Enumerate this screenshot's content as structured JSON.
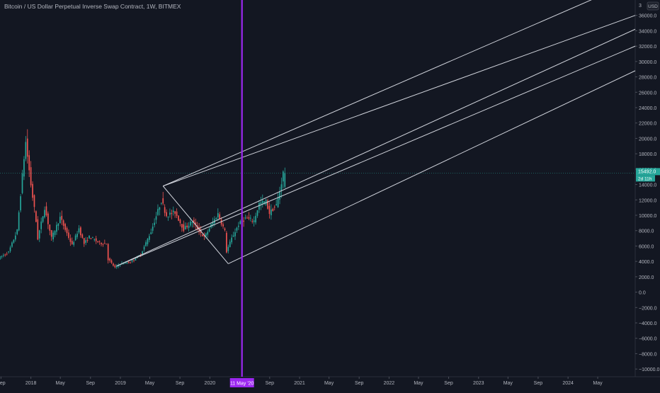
{
  "title": "Bitcoin / US Dollar Perpetual Inverse Swap Contract, 1W, BITMEX",
  "currency_button": "USD",
  "colors": {
    "background": "#131722",
    "axis_text": "#b2b5be",
    "up": "#26a69a",
    "down": "#ef5350",
    "channel": "#d1d4dc",
    "marker": "#9c27f0",
    "price_tag": "#26a69a"
  },
  "chart_data": {
    "type": "candlestick",
    "title": "Bitcoin / US Dollar Perpetual Inverse Swap Contract, 1W, BITMEX",
    "ylim": [
      -11000,
      38000
    ],
    "y_ticks": [
      -10000,
      -8000,
      -6000,
      -4000,
      -2000,
      0,
      2000,
      4000,
      6000,
      8000,
      10000,
      12000,
      14000,
      16000,
      18000,
      20000,
      22000,
      24000,
      26000,
      28000,
      30000,
      32000,
      34000,
      36000
    ],
    "y_tick_labels": [
      "−10000.0",
      "−8000.0",
      "−6000.0",
      "−4000.0",
      "−2000.0",
      "0.0",
      "2000.0",
      "4000.0",
      "6000.0",
      "8000.0",
      "10000.0",
      "12000.0",
      "14000.0",
      "16000.0",
      "18000.0",
      "20000.0",
      "22000.0",
      "24000.0",
      "26000.0",
      "28000.0",
      "30000.0",
      "32000.0",
      "34000.0",
      "36000.0"
    ],
    "x_ticks": [
      "2017-09-01",
      "2018-01-01",
      "2018-05-01",
      "2018-09-01",
      "2019-01-01",
      "2019-05-01",
      "2019-09-01",
      "2020-01-01",
      "2020-09-01",
      "2021-01-01",
      "2021-05-01",
      "2021-09-01",
      "2022-01-01",
      "2022-05-01",
      "2022-09-01",
      "2023-01-01",
      "2023-05-01",
      "2023-09-01",
      "2024-01-01",
      "2024-05-01"
    ],
    "x_tick_labels": [
      "Sep",
      "2018",
      "May",
      "Sep",
      "2019",
      "May",
      "Sep",
      "2020",
      "Sep",
      "2021",
      "May",
      "Sep",
      "2022",
      "May",
      "Sep",
      "2023",
      "May",
      "Sep",
      "2024",
      "May"
    ],
    "xlim": [
      "2017-08-28",
      "2024-10-01"
    ],
    "last_price": 15492.0,
    "last_price_label": "15492.0",
    "countdown_label": "2d 11h",
    "vertical_marker": {
      "date": "2020-05-11",
      "label": "11 May '20"
    },
    "anchors": [
      [
        "2017-08-28",
        4400
      ],
      [
        "2017-10-09",
        5200
      ],
      [
        "2017-11-13",
        8000
      ],
      [
        "2017-12-11",
        17500
      ],
      [
        "2017-12-18",
        19500
      ],
      [
        "2018-01-08",
        14000
      ],
      [
        "2018-01-29",
        9200
      ],
      [
        "2018-02-05",
        7000
      ],
      [
        "2018-03-05",
        11000
      ],
      [
        "2018-04-02",
        7000
      ],
      [
        "2018-05-07",
        9700
      ],
      [
        "2018-06-25",
        6100
      ],
      [
        "2018-07-23",
        8300
      ],
      [
        "2018-08-13",
        6300
      ],
      [
        "2018-09-03",
        7200
      ],
      [
        "2018-10-15",
        6400
      ],
      [
        "2018-11-12",
        6300
      ],
      [
        "2018-11-19",
        4300
      ],
      [
        "2018-12-17",
        3200
      ],
      [
        "2019-01-07",
        3700
      ],
      [
        "2019-02-18",
        3900
      ],
      [
        "2019-04-01",
        4900
      ],
      [
        "2019-05-13",
        7900
      ],
      [
        "2019-06-24",
        11900
      ],
      [
        "2019-07-15",
        10000
      ],
      [
        "2019-08-19",
        10400
      ],
      [
        "2019-09-23",
        8200
      ],
      [
        "2019-10-28",
        9200
      ],
      [
        "2019-12-16",
        7100
      ],
      [
        "2020-01-13",
        8700
      ],
      [
        "2020-02-10",
        10200
      ],
      [
        "2020-03-09",
        7900
      ],
      [
        "2020-03-16",
        5300
      ],
      [
        "2020-04-06",
        7000
      ],
      [
        "2020-05-04",
        8800
      ],
      [
        "2020-06-01",
        9600
      ],
      [
        "2020-07-06",
        9300
      ],
      [
        "2020-07-27",
        11500
      ],
      [
        "2020-08-24",
        11800
      ],
      [
        "2020-09-07",
        10300
      ],
      [
        "2020-10-05",
        11300
      ],
      [
        "2020-10-19",
        13100
      ],
      [
        "2020-11-02",
        15492
      ]
    ],
    "channel_lines": [
      {
        "from": [
          "2019-06-24",
          13800
        ],
        "to": [
          "2024-10-01",
          40500
        ]
      },
      {
        "from": [
          "2019-06-24",
          13800
        ],
        "to": [
          "2024-10-01",
          36000
        ]
      },
      {
        "from": [
          "2018-12-17",
          3400
        ],
        "to": [
          "2024-10-01",
          34200
        ]
      },
      {
        "from": [
          "2018-12-17",
          3400
        ],
        "to": [
          "2024-10-01",
          32000
        ]
      },
      {
        "from": [
          "2020-03-16",
          3700
        ],
        "to": [
          "2024-10-01",
          28800
        ]
      },
      {
        "from": [
          "2019-06-24",
          13800
        ],
        "to": [
          "2020-03-16",
          3700
        ]
      }
    ]
  }
}
